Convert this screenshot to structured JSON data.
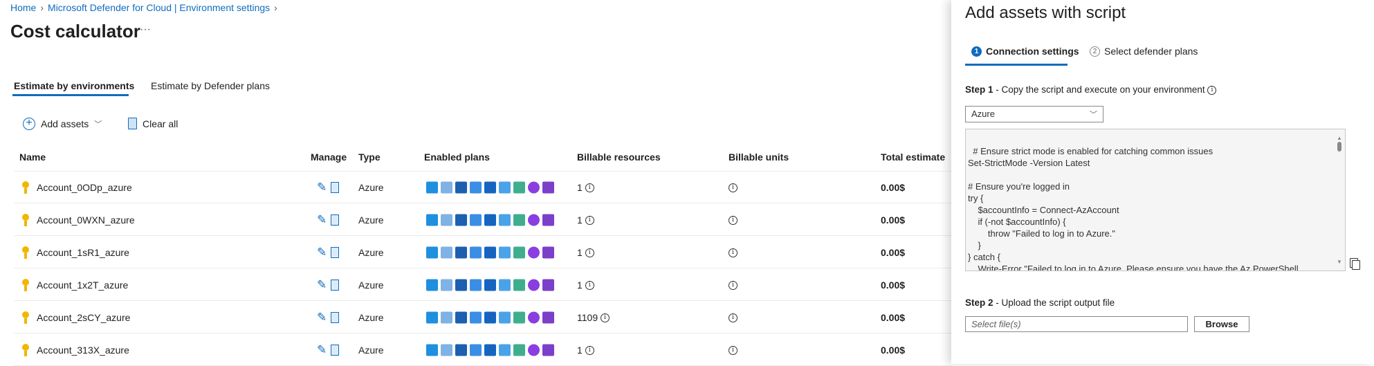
{
  "breadcrumb": [
    "Home",
    "Microsoft Defender for Cloud | Environment settings"
  ],
  "title": "Cost calculator",
  "more": "···",
  "tabs": [
    "Estimate by environments",
    "Estimate by Defender plans"
  ],
  "toolbar": {
    "add": "Add assets",
    "clear": "Clear all"
  },
  "columns": [
    "Name",
    "Manage",
    "Type",
    "Enabled plans",
    "Billable resources",
    "Billable units",
    "Total estimate"
  ],
  "rows": [
    {
      "name": "Account_0ODp_azure",
      "type": "Azure",
      "resources": "1",
      "total": "0.00$"
    },
    {
      "name": "Account_0WXN_azure",
      "type": "Azure",
      "resources": "1",
      "total": "0.00$"
    },
    {
      "name": "Account_1sR1_azure",
      "type": "Azure",
      "resources": "1",
      "total": "0.00$"
    },
    {
      "name": "Account_1x2T_azure",
      "type": "Azure",
      "resources": "1",
      "total": "0.00$"
    },
    {
      "name": "Account_2sCY_azure",
      "type": "Azure",
      "resources": "1109",
      "total": "0.00$"
    },
    {
      "name": "Account_313X_azure",
      "type": "Azure",
      "resources": "1",
      "total": "0.00$"
    }
  ],
  "plan_icons": [
    {
      "name": "servers-icon",
      "color": "#1f8fe0"
    },
    {
      "name": "app-service-icon",
      "color": "#7fb2e5"
    },
    {
      "name": "sql-database-icon",
      "color": "#1d5fb0"
    },
    {
      "name": "sql-servers-icon",
      "color": "#3a8ee6"
    },
    {
      "name": "storage-icon",
      "color": "#1565c0"
    },
    {
      "name": "cosmos-db-icon",
      "color": "#4aa3e8"
    },
    {
      "name": "resource-manager-icon",
      "color": "#3fae8f"
    },
    {
      "name": "containers-bug-icon",
      "color": "#8a3ee0"
    },
    {
      "name": "key-vault-icon",
      "color": "#7b3fc9"
    }
  ],
  "panel": {
    "title": "Add assets with script",
    "steps": [
      {
        "num": "1",
        "label": "Connection settings"
      },
      {
        "num": "2",
        "label": "Select defender plans"
      }
    ],
    "step1": {
      "bold": "Step 1",
      "text": " - Copy the script and execute on your environment"
    },
    "environment": "Azure",
    "script": "# Ensure strict mode is enabled for catching common issues\nSet-StrictMode -Version Latest\n\n# Ensure you're logged in\ntry {\n    $accountInfo = Connect-AzAccount\n    if (-not $accountInfo) {\n        throw \"Failed to log in to Azure.\"\n    }\n} catch {\n    Write-Error \"Failed to log in to Azure. Please ensure you have the Az PowerShell\nmodule installed and internet access. Error: $  \"",
    "step2": {
      "bold": "Step 2",
      "text": " - Upload the script output file"
    },
    "file_placeholder": "Select file(s)",
    "browse": "Browse"
  },
  "colors": {
    "accent": "#0f6cbd",
    "key": "#f2b600"
  }
}
